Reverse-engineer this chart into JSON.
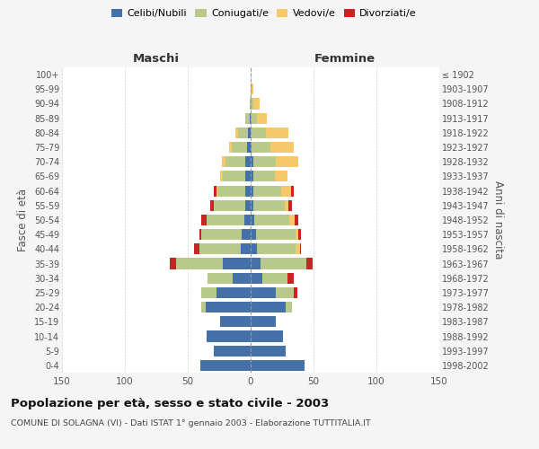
{
  "age_groups": [
    "0-4",
    "5-9",
    "10-14",
    "15-19",
    "20-24",
    "25-29",
    "30-34",
    "35-39",
    "40-44",
    "45-49",
    "50-54",
    "55-59",
    "60-64",
    "65-69",
    "70-74",
    "75-79",
    "80-84",
    "85-89",
    "90-94",
    "95-99",
    "100+"
  ],
  "birth_years": [
    "1998-2002",
    "1993-1997",
    "1988-1992",
    "1983-1987",
    "1978-1982",
    "1973-1977",
    "1968-1972",
    "1963-1967",
    "1958-1962",
    "1953-1957",
    "1948-1952",
    "1943-1947",
    "1938-1942",
    "1933-1937",
    "1928-1932",
    "1923-1927",
    "1918-1922",
    "1913-1917",
    "1908-1912",
    "1903-1907",
    "≤ 1902"
  ],
  "maschi": {
    "celibi": [
      40,
      29,
      35,
      24,
      36,
      27,
      14,
      22,
      8,
      7,
      5,
      4,
      4,
      4,
      4,
      3,
      2,
      1,
      0,
      0,
      0
    ],
    "coniugati": [
      0,
      0,
      0,
      0,
      3,
      12,
      20,
      37,
      33,
      32,
      30,
      25,
      22,
      18,
      16,
      12,
      8,
      3,
      1,
      0,
      0
    ],
    "vedovi": [
      0,
      0,
      0,
      0,
      0,
      0,
      0,
      0,
      0,
      0,
      0,
      0,
      1,
      2,
      3,
      2,
      2,
      0,
      0,
      0,
      0
    ],
    "divorziati": [
      0,
      0,
      0,
      0,
      0,
      0,
      0,
      5,
      4,
      2,
      4,
      3,
      2,
      0,
      0,
      0,
      0,
      0,
      0,
      0,
      0
    ]
  },
  "femmine": {
    "nubili": [
      43,
      28,
      26,
      20,
      28,
      20,
      9,
      8,
      5,
      4,
      3,
      2,
      2,
      2,
      2,
      1,
      0,
      0,
      0,
      0,
      0
    ],
    "coniugate": [
      0,
      0,
      0,
      0,
      5,
      14,
      20,
      36,
      31,
      32,
      28,
      25,
      22,
      17,
      18,
      15,
      12,
      5,
      2,
      1,
      0
    ],
    "vedove": [
      0,
      0,
      0,
      0,
      0,
      0,
      0,
      0,
      3,
      2,
      4,
      3,
      8,
      10,
      18,
      18,
      18,
      8,
      5,
      1,
      0
    ],
    "divorziate": [
      0,
      0,
      0,
      0,
      0,
      3,
      5,
      5,
      1,
      2,
      3,
      3,
      2,
      0,
      0,
      0,
      0,
      0,
      0,
      0,
      0
    ]
  },
  "colors": {
    "celibi": "#4472a8",
    "coniugati": "#b8c98a",
    "vedovi": "#f5c96a",
    "divorziati": "#cc2222"
  },
  "xlim": 150,
  "title": "Popolazione per età, sesso e stato civile - 2003",
  "subtitle": "COMUNE DI SOLAGNA (VI) - Dati ISTAT 1° gennaio 2003 - Elaborazione TUTTITALIA.IT",
  "ylabel_left": "Fasce di età",
  "ylabel_right": "Anni di nascita",
  "xlabel_maschi": "Maschi",
  "xlabel_femmine": "Femmine",
  "bg_color": "#f5f5f5",
  "plot_bg": "#ffffff",
  "grid_color": "#cccccc"
}
